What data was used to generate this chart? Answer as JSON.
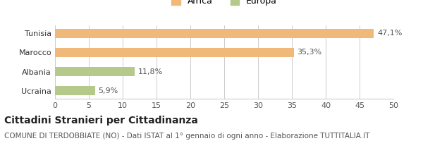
{
  "categories": [
    "Tunisia",
    "Marocco",
    "Albania",
    "Ucraina"
  ],
  "values": [
    47.1,
    35.3,
    11.8,
    5.9
  ],
  "labels": [
    "47,1%",
    "35,3%",
    "11,8%",
    "5,9%"
  ],
  "colors": [
    "#f0b97a",
    "#f0b97a",
    "#b5c98a",
    "#b5c98a"
  ],
  "legend": [
    {
      "label": "Africa",
      "color": "#f0b97a"
    },
    {
      "label": "Europa",
      "color": "#b5c98a"
    }
  ],
  "xlim": [
    0,
    50
  ],
  "xticks": [
    0,
    5,
    10,
    15,
    20,
    25,
    30,
    35,
    40,
    45,
    50
  ],
  "title": "Cittadini Stranieri per Cittadinanza",
  "subtitle": "COMUNE DI TERDOBBIATE (NO) - Dati ISTAT al 1° gennaio di ogni anno - Elaborazione TUTTITALIA.IT",
  "background_color": "#ffffff",
  "bar_height": 0.5,
  "title_fontsize": 10,
  "subtitle_fontsize": 7.5,
  "tick_fontsize": 8,
  "label_fontsize": 8,
  "legend_fontsize": 9
}
